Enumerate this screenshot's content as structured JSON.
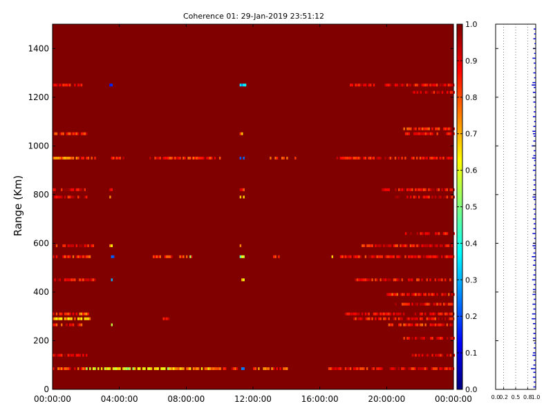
{
  "chart_data": [
    {
      "type": "heatmap",
      "title": "Coherence 01: 29-Jan-2019 23:51:12",
      "xlabel": "",
      "ylabel": "Range (Km)",
      "xlim_hours": [
        0,
        24
      ],
      "ylim": [
        0,
        1500
      ],
      "xticks": [
        "00:00:00",
        "04:00:00",
        "08:00:00",
        "12:00:00",
        "16:00:00",
        "20:00:00",
        "00:00:00"
      ],
      "yticks": [
        0,
        200,
        400,
        600,
        800,
        1000,
        1200,
        1400
      ],
      "background_value": 1.0,
      "colormap": "jet",
      "bands": [
        {
          "range_km": 1250,
          "segments": [
            [
              0,
              1.8,
              0.9
            ],
            [
              3.4,
              3.5,
              0.2
            ],
            [
              11.2,
              11.5,
              0.3
            ],
            [
              17.8,
              24,
              0.9
            ]
          ]
        },
        {
          "range_km": 1220,
          "segments": [
            [
              21.5,
              24,
              0.9
            ]
          ]
        },
        {
          "range_km": 1070,
          "segments": [
            [
              21.0,
              24,
              0.85
            ]
          ]
        },
        {
          "range_km": 1050,
          "segments": [
            [
              0,
              2.0,
              0.85
            ],
            [
              3.4,
              3.5,
              0.9
            ],
            [
              11.2,
              11.3,
              0.75
            ],
            [
              21.0,
              24,
              0.9
            ]
          ]
        },
        {
          "range_km": 950,
          "segments": [
            [
              0,
              1.5,
              0.75
            ],
            [
              1.5,
              2.6,
              0.85
            ],
            [
              3.5,
              4.3,
              0.9
            ],
            [
              5.8,
              10.0,
              0.85
            ],
            [
              11.2,
              11.4,
              0.25
            ],
            [
              13.0,
              14.5,
              0.8
            ],
            [
              17.0,
              24,
              0.88
            ]
          ]
        },
        {
          "range_km": 820,
          "segments": [
            [
              0,
              2.0,
              0.9
            ],
            [
              3.4,
              3.5,
              0.85
            ],
            [
              11.2,
              11.4,
              0.85
            ],
            [
              19.5,
              24,
              0.88
            ]
          ]
        },
        {
          "range_km": 790,
          "segments": [
            [
              0,
              2.0,
              0.9
            ],
            [
              3.4,
              3.5,
              0.75
            ],
            [
              11.2,
              11.4,
              0.75
            ],
            [
              20.5,
              24,
              0.9
            ]
          ]
        },
        {
          "range_km": 640,
          "segments": [
            [
              21.0,
              24,
              0.9
            ]
          ]
        },
        {
          "range_km": 590,
          "segments": [
            [
              0,
              2.5,
              0.88
            ],
            [
              3.4,
              3.5,
              0.7
            ],
            [
              11.2,
              11.3,
              0.8
            ],
            [
              18.5,
              24,
              0.88
            ]
          ]
        },
        {
          "range_km": 545,
          "segments": [
            [
              0,
              2.3,
              0.85
            ],
            [
              3.5,
              3.6,
              0.25
            ],
            [
              6.0,
              8.3,
              0.85
            ],
            [
              8.2,
              8.3,
              0.6
            ],
            [
              11.2,
              11.4,
              0.55
            ],
            [
              13.2,
              13.5,
              0.85
            ],
            [
              16.6,
              16.7,
              0.7
            ],
            [
              17.2,
              24,
              0.88
            ]
          ]
        },
        {
          "range_km": 450,
          "segments": [
            [
              0,
              2.5,
              0.88
            ],
            [
              3.4,
              3.5,
              0.3
            ],
            [
              11.2,
              11.4,
              0.7
            ],
            [
              18.0,
              24,
              0.88
            ]
          ]
        },
        {
          "range_km": 390,
          "segments": [
            [
              20.0,
              24,
              0.85
            ]
          ]
        },
        {
          "range_km": 350,
          "segments": [
            [
              20.5,
              24,
              0.88
            ]
          ]
        },
        {
          "range_km": 310,
          "segments": [
            [
              0,
              2.1,
              0.8
            ],
            [
              17.5,
              24,
              0.9
            ]
          ]
        },
        {
          "range_km": 290,
          "segments": [
            [
              0,
              2.2,
              0.7
            ],
            [
              6.5,
              7.0,
              0.9
            ],
            [
              18.0,
              24,
              0.88
            ]
          ]
        },
        {
          "range_km": 265,
          "segments": [
            [
              0,
              1.8,
              0.85
            ],
            [
              3.4,
              3.5,
              0.65
            ],
            [
              20.0,
              24,
              0.85
            ]
          ]
        },
        {
          "range_km": 210,
          "segments": [
            [
              21.0,
              24,
              0.9
            ]
          ]
        },
        {
          "range_km": 140,
          "segments": [
            [
              0,
              2.0,
              0.9
            ],
            [
              21.5,
              24,
              0.9
            ]
          ]
        },
        {
          "range_km": 85,
          "segments": [
            [
              0,
              2.0,
              0.82
            ],
            [
              2.0,
              7.0,
              0.6
            ],
            [
              7.0,
              10.0,
              0.72
            ],
            [
              10.0,
              11.0,
              0.85
            ],
            [
              11.2,
              11.4,
              0.3
            ],
            [
              12.0,
              14.0,
              0.8
            ],
            [
              16.5,
              24,
              0.88
            ]
          ]
        }
      ]
    },
    {
      "type": "colorbar",
      "ticks": [
        0.0,
        0.1,
        0.2,
        0.3,
        0.4,
        0.5,
        0.6,
        0.7,
        0.8,
        0.9,
        1.0
      ],
      "tick_labels": [
        "0.0",
        "0.1",
        "0.2",
        "0.3",
        "0.4",
        "0.5",
        "0.6",
        "0.7",
        "0.8",
        "0.9",
        "1.0"
      ],
      "range": [
        0,
        1
      ]
    },
    {
      "type": "bar",
      "orientation": "horizontal",
      "xlim": [
        0,
        1
      ],
      "ylim": [
        0,
        1500
      ],
      "xticks": [
        0.0,
        0.2,
        0.5,
        0.8,
        1.0
      ],
      "xtick_labels": [
        "0.0",
        "0.2",
        "0.5",
        "0.8",
        "1.0"
      ],
      "grid": "vertical dotted",
      "series_color": "#0000cc",
      "profile": [
        [
          1480,
          0.95
        ],
        [
          1460,
          0.96
        ],
        [
          1440,
          0.94
        ],
        [
          1420,
          0.97
        ],
        [
          1400,
          0.93
        ],
        [
          1380,
          0.96
        ],
        [
          1360,
          0.92
        ],
        [
          1340,
          0.95
        ],
        [
          1320,
          0.97
        ],
        [
          1300,
          0.94
        ],
        [
          1280,
          0.96
        ],
        [
          1260,
          0.92
        ],
        [
          1250,
          0.9
        ],
        [
          1240,
          0.95
        ],
        [
          1220,
          0.93
        ],
        [
          1200,
          0.96
        ],
        [
          1180,
          0.94
        ],
        [
          1160,
          0.97
        ],
        [
          1140,
          0.95
        ],
        [
          1120,
          0.93
        ],
        [
          1100,
          0.96
        ],
        [
          1080,
          0.94
        ],
        [
          1060,
          0.92
        ],
        [
          1050,
          0.93
        ],
        [
          1040,
          0.95
        ],
        [
          1020,
          0.94
        ],
        [
          1000,
          0.9
        ],
        [
          980,
          0.95
        ],
        [
          960,
          0.94
        ],
        [
          950,
          0.91
        ],
        [
          940,
          0.96
        ],
        [
          920,
          0.95
        ],
        [
          900,
          0.93
        ],
        [
          880,
          0.97
        ],
        [
          860,
          0.94
        ],
        [
          840,
          0.95
        ],
        [
          820,
          0.93
        ],
        [
          800,
          0.96
        ],
        [
          790,
          0.92
        ],
        [
          780,
          0.95
        ],
        [
          760,
          0.97
        ],
        [
          740,
          0.94
        ],
        [
          720,
          0.96
        ],
        [
          700,
          0.93
        ],
        [
          680,
          0.95
        ],
        [
          660,
          0.94
        ],
        [
          640,
          0.92
        ],
        [
          620,
          0.96
        ],
        [
          600,
          0.93
        ],
        [
          590,
          0.92
        ],
        [
          580,
          0.95
        ],
        [
          560,
          0.94
        ],
        [
          545,
          0.9
        ],
        [
          530,
          0.95
        ],
        [
          510,
          0.93
        ],
        [
          490,
          0.96
        ],
        [
          470,
          0.94
        ],
        [
          450,
          0.91
        ],
        [
          430,
          0.95
        ],
        [
          410,
          0.93
        ],
        [
          390,
          0.92
        ],
        [
          370,
          0.95
        ],
        [
          350,
          0.92
        ],
        [
          330,
          0.94
        ],
        [
          310,
          0.91
        ],
        [
          290,
          0.9
        ],
        [
          270,
          0.93
        ],
        [
          250,
          0.95
        ],
        [
          230,
          0.94
        ],
        [
          210,
          0.93
        ],
        [
          190,
          0.96
        ],
        [
          170,
          0.95
        ],
        [
          150,
          0.93
        ],
        [
          140,
          0.92
        ],
        [
          120,
          0.95
        ],
        [
          100,
          0.94
        ],
        [
          85,
          0.88
        ],
        [
          70,
          0.94
        ],
        [
          50,
          0.93
        ],
        [
          30,
          0.95
        ],
        [
          10,
          0.94
        ]
      ]
    }
  ]
}
